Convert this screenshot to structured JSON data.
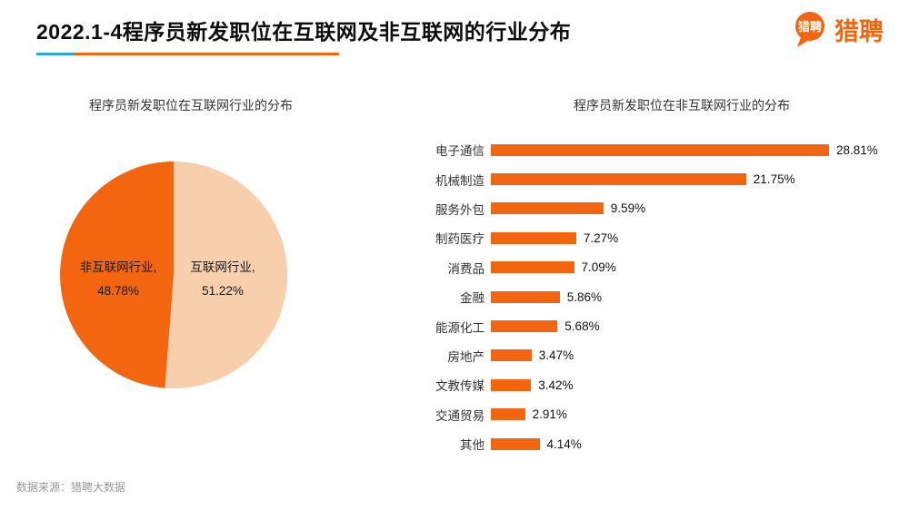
{
  "header": {
    "title": "2022.1-4程序员新发职位在互联网及非互联网的行业分布",
    "logo": {
      "badge_text": "猎聘",
      "wordmark": "猎聘"
    }
  },
  "pie": {
    "title": "程序员新发职位在互联网行业的分布",
    "labels": {
      "non_internet_line1": "非互联网行业,",
      "non_internet_line2": "48.78%",
      "internet_line1": "互联网行业,",
      "internet_line2": "51.22%"
    }
  },
  "bars": {
    "title": "程序员新发职位在非互联网行业的分布"
  },
  "footer": {
    "source": "数据来源：猎聘大数据"
  },
  "colors": {
    "accent_orange": "#f3650f",
    "pie_light": "#f7cfad",
    "underline_blue": "#29a7e1"
  },
  "chart_data": [
    {
      "type": "pie",
      "title": "程序员新发职位在互联网行业的分布",
      "labels": [
        "互联网行业",
        "非互联网行业"
      ],
      "values": [
        51.22,
        48.78
      ],
      "colors": [
        "#f7cfad",
        "#f3650f"
      ],
      "start_angle_deg": 0,
      "direction": "clockwise"
    },
    {
      "type": "bar",
      "title": "程序员新发职位在非互联网行业的分布",
      "orientation": "horizontal",
      "categories": [
        "电子通信",
        "机械制造",
        "服务外包",
        "制药医疗",
        "消费品",
        "金融",
        "能源化工",
        "房地产",
        "文教传媒",
        "交通贸易",
        "其他"
      ],
      "values": [
        28.81,
        21.75,
        9.59,
        7.27,
        7.09,
        5.86,
        5.68,
        3.47,
        3.42,
        2.91,
        4.14
      ],
      "value_labels": [
        "28.81%",
        "21.75%",
        "9.59%",
        "7.27%",
        "7.09%",
        "5.86%",
        "5.68%",
        "3.47%",
        "3.42%",
        "2.91%",
        "4.14%"
      ],
      "xlim": [
        0,
        30
      ],
      "bar_color": "#f3650f",
      "grid": false,
      "legend": "none"
    }
  ]
}
